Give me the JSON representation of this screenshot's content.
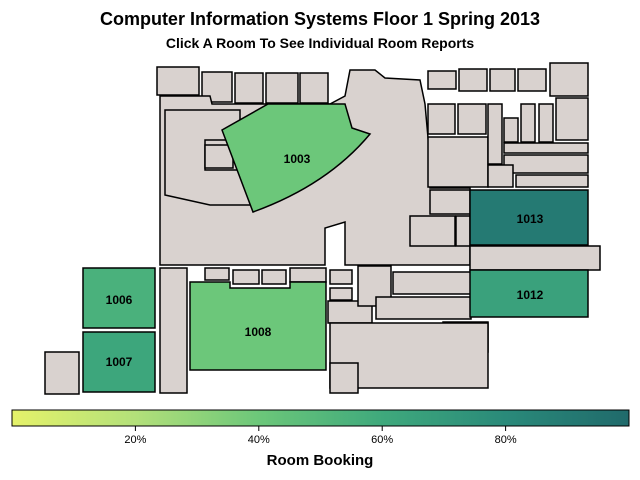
{
  "header": {
    "title": "Computer Information Systems Floor 1 Spring 2013",
    "subtitle": "Click A Room To See Individual Room Reports"
  },
  "rooms": [
    {
      "id": "1003",
      "label": "1003",
      "booking": 0.4
    },
    {
      "id": "1013",
      "label": "1013",
      "booking": 0.9
    },
    {
      "id": "1012",
      "label": "1012",
      "booking": 0.65
    },
    {
      "id": "1006",
      "label": "1006",
      "booking": 0.55
    },
    {
      "id": "1007",
      "label": "1007",
      "booking": 0.62
    },
    {
      "id": "1008",
      "label": "1008",
      "booking": 0.4
    }
  ],
  "legend": {
    "title": "Room Booking",
    "ticks": [
      "20%",
      "40%",
      "60%",
      "80%"
    ],
    "tick_values": [
      0.2,
      0.4,
      0.6,
      0.8
    ],
    "range": [
      0.0,
      1.0
    ],
    "colors": [
      "#e5f26a",
      "#b3e07a",
      "#6cc77a",
      "#3fa97c",
      "#2a8a7a",
      "#206a6b"
    ]
  },
  "colors": {
    "building_fill": "#d9d2cf",
    "wall": "#000000"
  }
}
